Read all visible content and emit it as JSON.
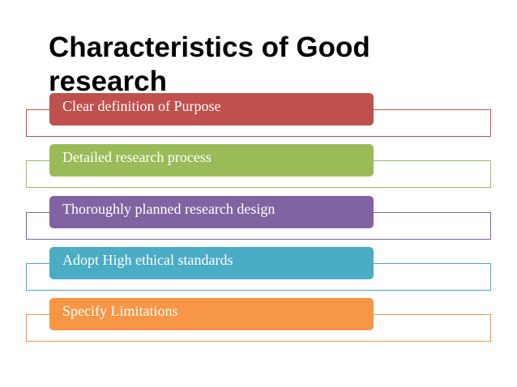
{
  "slide": {
    "title": "Characteristics of Good research",
    "items": [
      {
        "label": "Clear definition of Purpose",
        "color": "#c0504d"
      },
      {
        "label": "Detailed research process",
        "color": "#9bbb59"
      },
      {
        "label": "Thoroughly planned research design",
        "color": "#8064a2"
      },
      {
        "label": "Adopt High ethical standards",
        "color": "#4bacc6"
      },
      {
        "label": "Specify Limitations",
        "color": "#f79646"
      }
    ]
  }
}
